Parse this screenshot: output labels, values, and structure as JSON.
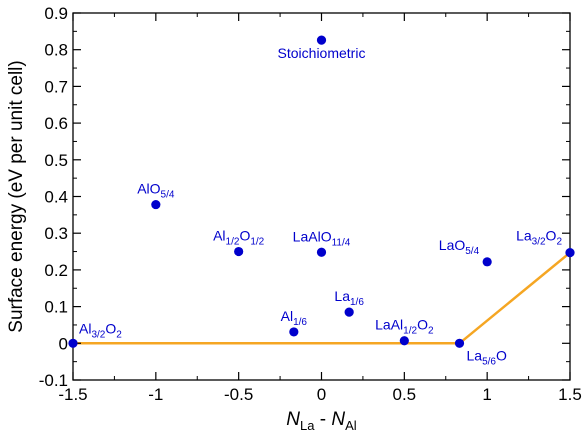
{
  "chart_data": {
    "type": "scatter",
    "xlabel": {
      "main": "N",
      "main_sub": "La",
      "sep": " - ",
      "second": "N",
      "second_sub": "Al"
    },
    "ylabel": "Surface energy (eV per unit cell)",
    "xlim": [
      -1.5,
      1.5
    ],
    "ylim": [
      -0.1,
      0.9
    ],
    "xticks": [
      -1.5,
      -1,
      -0.5,
      0,
      0.5,
      1,
      1.5
    ],
    "xtick_labels": [
      "-1.5",
      "-1",
      "-0.5",
      "0",
      "0.5",
      "1",
      "1.5"
    ],
    "yticks": [
      -0.1,
      0,
      0.1,
      0.2,
      0.3,
      0.4,
      0.5,
      0.6,
      0.7,
      0.8,
      0.9
    ],
    "ytick_labels": [
      "-0.1",
      "0",
      "0.1",
      "0.2",
      "0.3",
      "0.4",
      "0.5",
      "0.6",
      "0.7",
      "0.8",
      "0.9"
    ],
    "grid": false,
    "point_color": "#0000cc",
    "label_color": "#0000cc",
    "line_color": "#f5a623",
    "points": [
      {
        "x": 0,
        "y": 0.826,
        "label": [
          {
            "t": "Stoichiometric"
          }
        ],
        "anchor": "below"
      },
      {
        "x": -1,
        "y": 0.378,
        "label": [
          {
            "t": "AlO"
          },
          {
            "t": "5/4",
            "sub": true
          }
        ],
        "anchor": "above"
      },
      {
        "x": -0.5,
        "y": 0.25,
        "label": [
          {
            "t": "Al"
          },
          {
            "t": "1/2",
            "sub": true
          },
          {
            "t": "O"
          },
          {
            "t": "1/2",
            "sub": true
          }
        ],
        "anchor": "above"
      },
      {
        "x": 0,
        "y": 0.248,
        "label": [
          {
            "t": "LaAlO"
          },
          {
            "t": "11/4",
            "sub": true
          }
        ],
        "anchor": "above"
      },
      {
        "x": 1,
        "y": 0.222,
        "label": [
          {
            "t": "LaO"
          },
          {
            "t": "5/4",
            "sub": true
          }
        ],
        "anchor": "above-left"
      },
      {
        "x": 1.5,
        "y": 0.247,
        "label": [
          {
            "t": "La"
          },
          {
            "t": "3/2",
            "sub": true
          },
          {
            "t": "O"
          },
          {
            "t": "2",
            "sub": true
          }
        ],
        "anchor": "above-left"
      },
      {
        "x": -0.167,
        "y": 0.031,
        "label": [
          {
            "t": "Al"
          },
          {
            "t": "1/6",
            "sub": true
          }
        ],
        "anchor": "above"
      },
      {
        "x": 0.167,
        "y": 0.085,
        "label": [
          {
            "t": "La"
          },
          {
            "t": "1/6",
            "sub": true
          }
        ],
        "anchor": "above"
      },
      {
        "x": 0.5,
        "y": 0.007,
        "label": [
          {
            "t": "LaAl"
          },
          {
            "t": "1/2",
            "sub": true
          },
          {
            "t": "O"
          },
          {
            "t": "2",
            "sub": true
          }
        ],
        "anchor": "above"
      },
      {
        "x": 0.833,
        "y": 0.0,
        "label": [
          {
            "t": "La"
          },
          {
            "t": "5/6",
            "sub": true
          },
          {
            "t": "O"
          }
        ],
        "anchor": "below-right"
      },
      {
        "x": -1.5,
        "y": 0.0,
        "label": [
          {
            "t": "Al"
          },
          {
            "t": "3/2",
            "sub": true
          },
          {
            "t": "O"
          },
          {
            "t": "2",
            "sub": true
          }
        ],
        "anchor": "above-right"
      }
    ],
    "lines": [
      {
        "x": [
          -1.5,
          0.833,
          1.5
        ],
        "y": [
          0.0,
          0.0,
          0.247
        ]
      }
    ]
  }
}
